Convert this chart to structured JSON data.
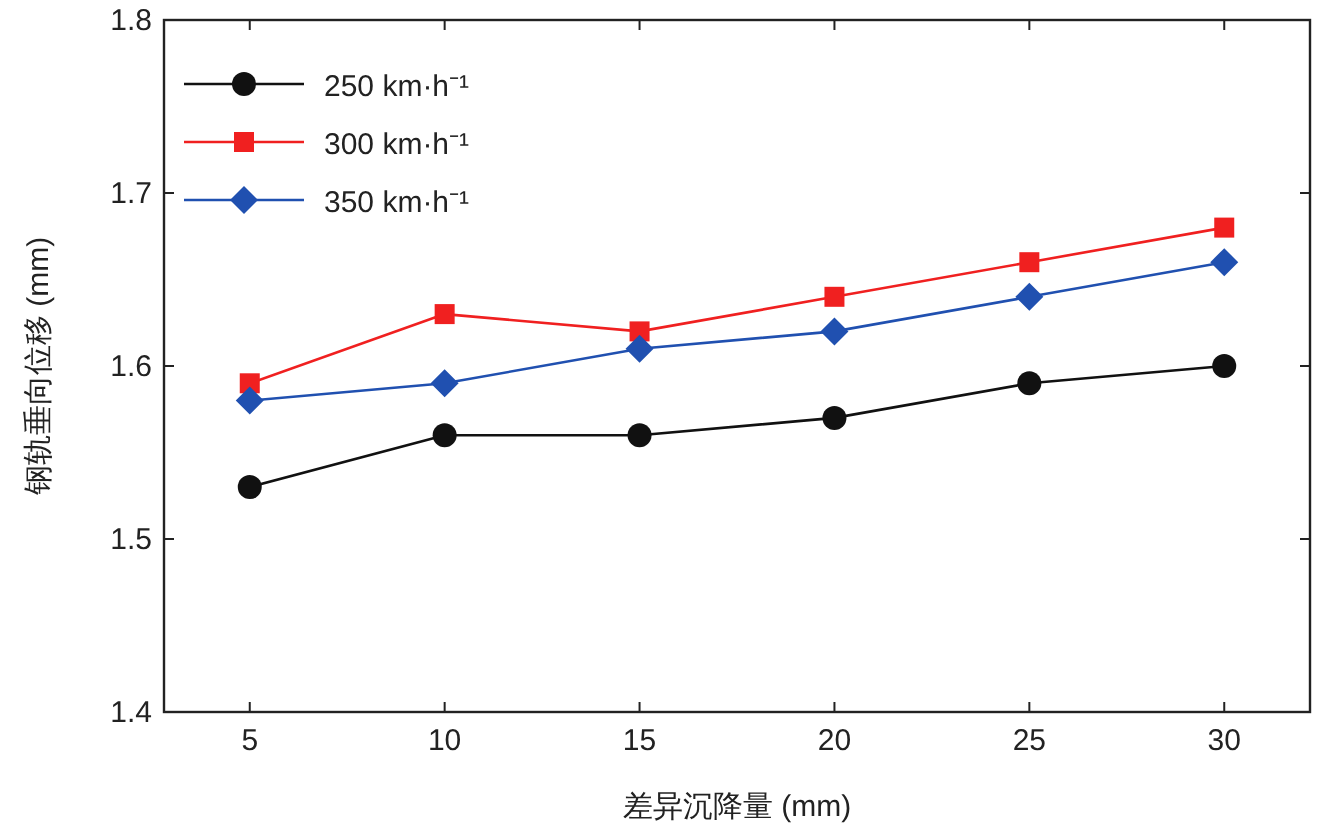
{
  "chart_data": {
    "type": "line",
    "xlabel": "差异沉降量 (mm)",
    "ylabel": "钢轨垂向位移 (mm)",
    "x": [
      5,
      10,
      15,
      20,
      25,
      30
    ],
    "xlim": [
      2.8,
      32.2
    ],
    "xticks": [
      5,
      10,
      15,
      20,
      25,
      30
    ],
    "ylim": [
      1.4,
      1.8
    ],
    "yticks": [
      1.4,
      1.5,
      1.6,
      1.7,
      1.8
    ],
    "grid": false,
    "legend": "top left",
    "line_style": "solid",
    "series": [
      {
        "name": "250 km·h⁻¹",
        "color": "#111111",
        "marker": "circle",
        "values": [
          1.53,
          1.56,
          1.56,
          1.57,
          1.59,
          1.6
        ]
      },
      {
        "name": "300 km·h⁻¹",
        "color": "#f02020",
        "marker": "square",
        "values": [
          1.59,
          1.63,
          1.62,
          1.64,
          1.66,
          1.68
        ]
      },
      {
        "name": "350 km·h⁻¹",
        "color": "#2050b0",
        "marker": "diamond",
        "values": [
          1.58,
          1.59,
          1.61,
          1.62,
          1.64,
          1.66
        ]
      }
    ]
  }
}
